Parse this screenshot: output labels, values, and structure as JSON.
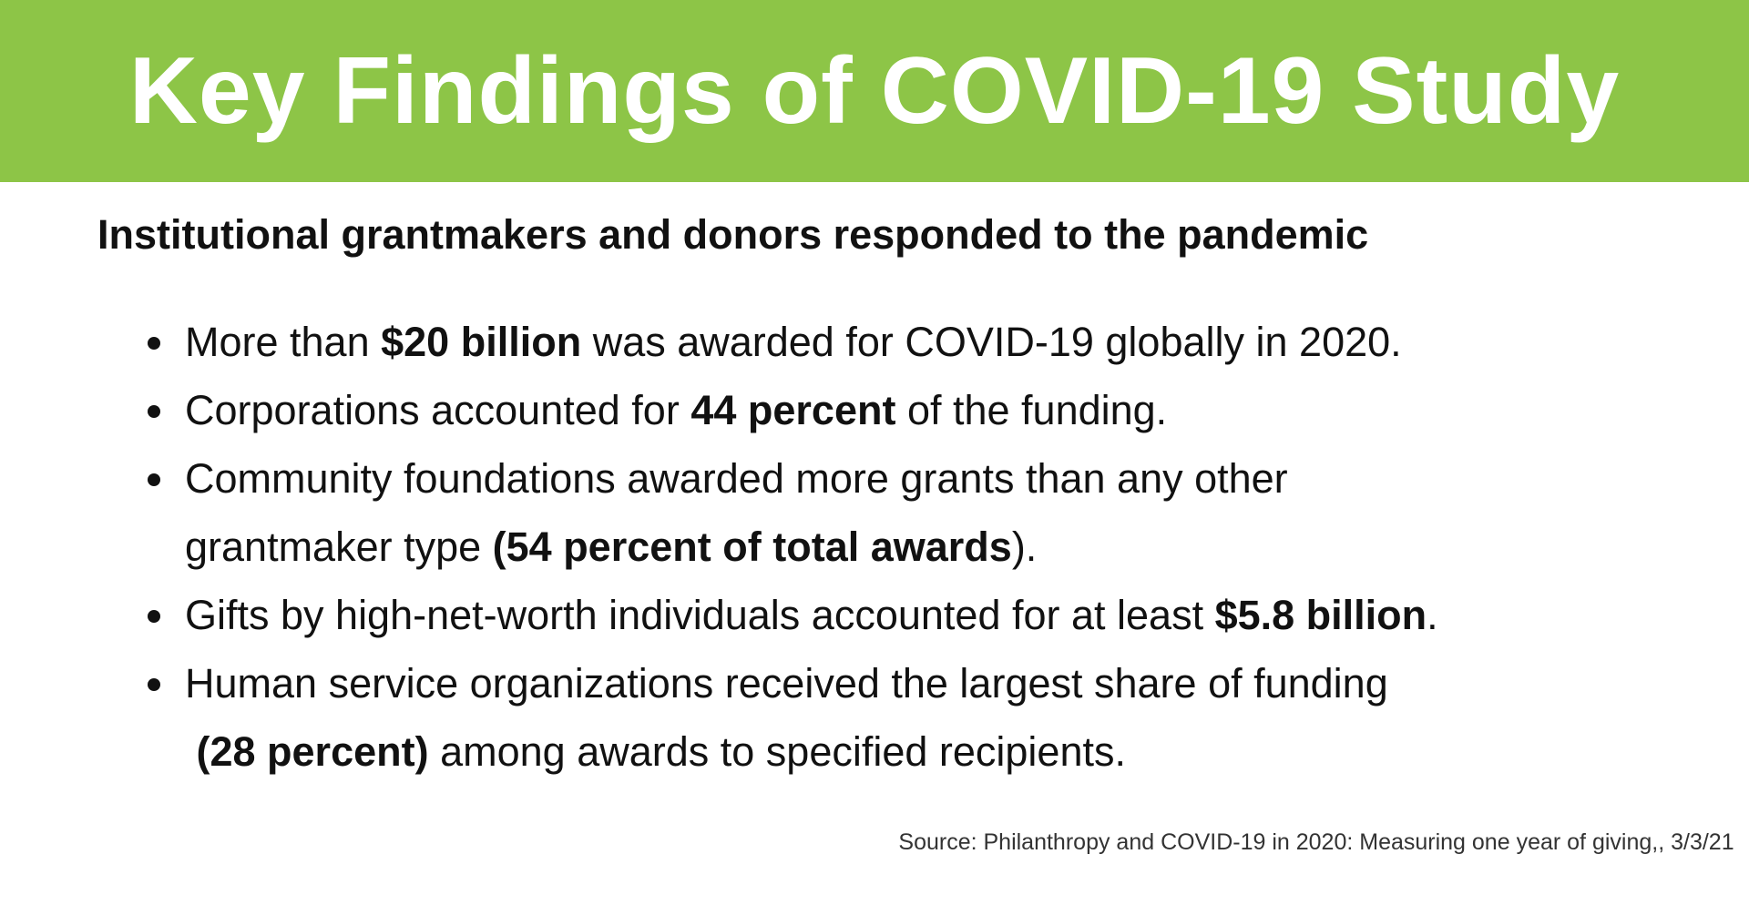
{
  "header": {
    "title": "Key Findings of COVID-19 Study"
  },
  "subtitle": "Institutional grantmakers and donors responded to the pandemic",
  "bullets": [
    [
      [
        {
          "text": "More than ",
          "bold": false
        },
        {
          "text": "$20 billion",
          "bold": true
        },
        {
          "text": " was awarded for COVID-19 globally in 2020.",
          "bold": false
        }
      ]
    ],
    [
      [
        {
          "text": "Corporations accounted for ",
          "bold": false
        },
        {
          "text": "44 percent",
          "bold": true
        },
        {
          "text": " of the funding.",
          "bold": false
        }
      ]
    ],
    [
      [
        {
          "text": "Community foundations awarded more grants than any other",
          "bold": false
        }
      ],
      [
        {
          "text": "grantmaker type ",
          "bold": false
        },
        {
          "text": "(54 percent of total awards",
          "bold": true
        },
        {
          "text": ").",
          "bold": false
        }
      ]
    ],
    [
      [
        {
          "text": "Gifts by high-net-worth individuals accounted for at least ",
          "bold": false
        },
        {
          "text": "$5.8 billion",
          "bold": true
        },
        {
          "text": ".",
          "bold": false
        }
      ]
    ],
    [
      [
        {
          "text": "Human service organizations received the largest share of funding",
          "bold": false
        }
      ],
      [
        {
          "text": " (28 percent)",
          "bold": true
        },
        {
          "text": " among awards to specified recipients.",
          "bold": false
        }
      ]
    ]
  ],
  "source": "Source: Philanthropy and COVID-19 in 2020: Measuring one year of giving,, 3/3/21"
}
